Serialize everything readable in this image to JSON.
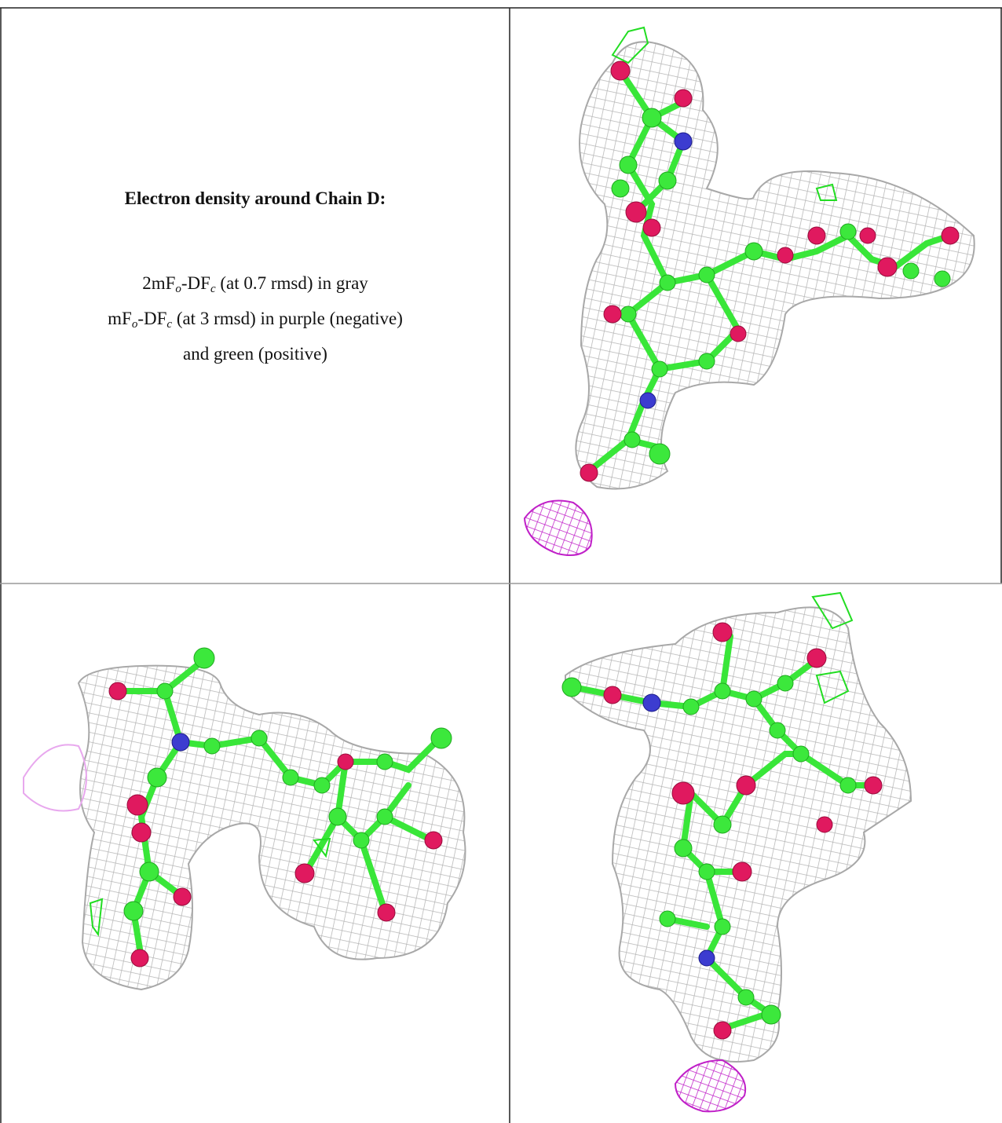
{
  "caption": {
    "title": "Electron density around Chain D:",
    "lines": [
      [
        "2mF",
        "o",
        "-DF",
        "c",
        " (at 0.7 rmsd) in gray"
      ],
      [
        "mF",
        "o",
        "-DF",
        "c",
        " (at 3 rmsd) in purple (negative)"
      ],
      [
        "and green (positive)"
      ]
    ]
  }
}
